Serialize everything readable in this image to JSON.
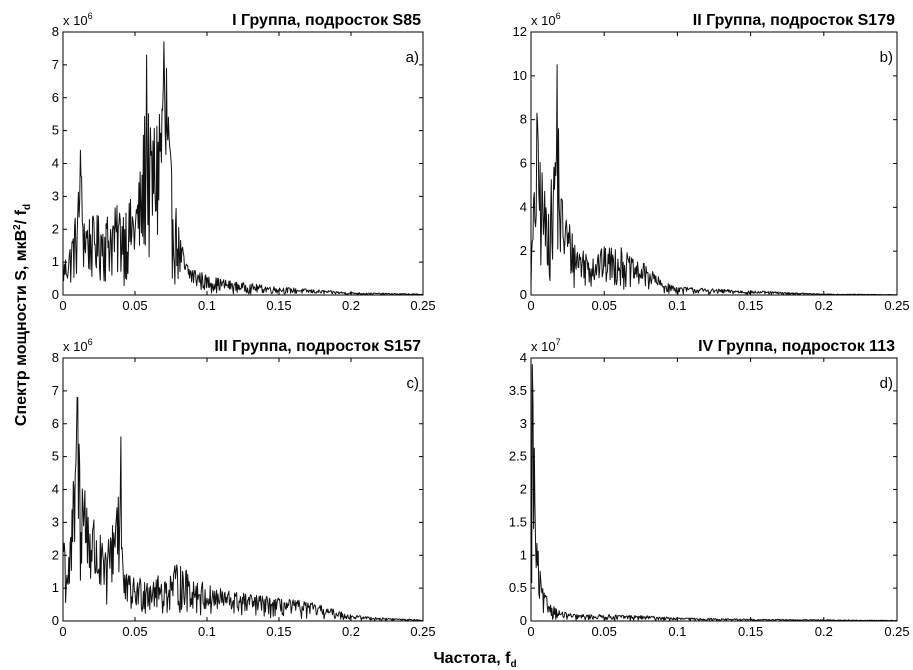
{
  "figure": {
    "ylabel_main": "Спектр мощности S, мкВ",
    "ylabel_sup": "2",
    "ylabel_tail": "/ f",
    "ylabel_sub": "d",
    "xlabel_main": "Частота, f",
    "xlabel_sub": "d"
  },
  "chart_data": [
    {
      "type": "line",
      "title": "I Группа, подросток S85",
      "panel_letter": "a)",
      "exponent_label": "x 10",
      "exponent_power": "6",
      "xlim": [
        0,
        0.25
      ],
      "ylim": [
        0,
        8
      ],
      "xticks": [
        "0",
        "0.05",
        "0.1",
        "0.15",
        "0.2",
        "0.25"
      ],
      "yticks": [
        "0",
        "1",
        "2",
        "3",
        "4",
        "5",
        "6",
        "7",
        "8"
      ],
      "envelope": {
        "x": [
          0,
          0.005,
          0.01,
          0.012,
          0.015,
          0.02,
          0.03,
          0.04,
          0.05,
          0.055,
          0.058,
          0.06,
          0.065,
          0.07,
          0.072,
          0.075,
          0.08,
          0.085,
          0.09,
          0.1,
          0.12,
          0.15,
          0.2,
          0.25
        ],
        "y": [
          1.0,
          1.6,
          2.8,
          4.4,
          2.6,
          2.4,
          2.5,
          2.8,
          3.0,
          4.2,
          7.3,
          5.0,
          5.6,
          7.7,
          6.9,
          4.1,
          2.2,
          1.1,
          0.9,
          0.6,
          0.4,
          0.25,
          0.08,
          0.03
        ]
      },
      "peaks": [
        {
          "x": 0.012,
          "y": 4.4
        },
        {
          "x": 0.058,
          "y": 7.3
        },
        {
          "x": 0.07,
          "y": 7.7
        },
        {
          "x": 0.072,
          "y": 6.9
        }
      ]
    },
    {
      "type": "line",
      "title": "II Группа, подросток S179",
      "panel_letter": "b)",
      "exponent_label": "x 10",
      "exponent_power": "6",
      "xlim": [
        0,
        0.25
      ],
      "ylim": [
        0,
        12
      ],
      "xticks": [
        "0",
        "0.05",
        "0.1",
        "0.15",
        "0.2",
        "0.25"
      ],
      "yticks": [
        "0",
        "2",
        "4",
        "6",
        "8",
        "10",
        "12"
      ],
      "envelope": {
        "x": [
          0,
          0.004,
          0.007,
          0.01,
          0.015,
          0.018,
          0.02,
          0.025,
          0.03,
          0.04,
          0.05,
          0.06,
          0.065,
          0.07,
          0.08,
          0.09,
          0.1,
          0.12,
          0.15,
          0.2,
          0.25
        ],
        "y": [
          1.5,
          8.3,
          6.2,
          4.5,
          5.5,
          10.5,
          5.0,
          3.7,
          2.5,
          2.0,
          2.2,
          2.3,
          2.0,
          1.6,
          1.4,
          0.6,
          0.4,
          0.3,
          0.2,
          0.05,
          0.02
        ]
      },
      "peaks": [
        {
          "x": 0.004,
          "y": 8.3
        },
        {
          "x": 0.018,
          "y": 10.5
        }
      ]
    },
    {
      "type": "line",
      "title": "III Группа, подросток S157",
      "panel_letter": "c)",
      "exponent_label": "x 10",
      "exponent_power": "6",
      "xlim": [
        0,
        0.25
      ],
      "ylim": [
        0,
        8
      ],
      "xticks": [
        "0",
        "0.05",
        "0.1",
        "0.15",
        "0.2",
        "0.25"
      ],
      "yticks": [
        "0",
        "1",
        "2",
        "3",
        "4",
        "5",
        "6",
        "7",
        "8"
      ],
      "envelope": {
        "x": [
          0,
          0.002,
          0.005,
          0.01,
          0.012,
          0.015,
          0.02,
          0.03,
          0.04,
          0.042,
          0.05,
          0.06,
          0.07,
          0.08,
          0.09,
          0.1,
          0.12,
          0.15,
          0.17,
          0.2,
          0.22,
          0.25
        ],
        "y": [
          3.8,
          2.0,
          2.5,
          6.8,
          6.0,
          4.5,
          3.5,
          2.0,
          5.6,
          1.5,
          1.3,
          1.5,
          1.3,
          1.8,
          1.4,
          1.1,
          0.9,
          0.7,
          0.6,
          0.2,
          0.1,
          0.04
        ]
      },
      "peaks": [
        {
          "x": 0.01,
          "y": 6.8
        },
        {
          "x": 0.04,
          "y": 5.6
        }
      ]
    },
    {
      "type": "line",
      "title": "IV Группа, подросток 113",
      "panel_letter": "d)",
      "exponent_label": "x 10",
      "exponent_power": "7",
      "xlim": [
        0,
        0.25
      ],
      "ylim": [
        0,
        4
      ],
      "xticks": [
        "0",
        "0.05",
        "0.1",
        "0.15",
        "0.2",
        "0.25"
      ],
      "yticks": [
        "0",
        "0.5",
        "1",
        "1.5",
        "2",
        "2.5",
        "3",
        "3.5",
        "4"
      ],
      "envelope": {
        "x": [
          0,
          0.001,
          0.002,
          0.003,
          0.004,
          0.006,
          0.008,
          0.01,
          0.015,
          0.02,
          0.03,
          0.05,
          0.08,
          0.1,
          0.15,
          0.2,
          0.25
        ],
        "y": [
          1.5,
          3.9,
          3.2,
          2.0,
          1.3,
          0.8,
          0.5,
          0.4,
          0.25,
          0.15,
          0.1,
          0.1,
          0.08,
          0.05,
          0.03,
          0.02,
          0.01
        ]
      },
      "peaks": [
        {
          "x": 0.001,
          "y": 3.9
        }
      ]
    }
  ]
}
